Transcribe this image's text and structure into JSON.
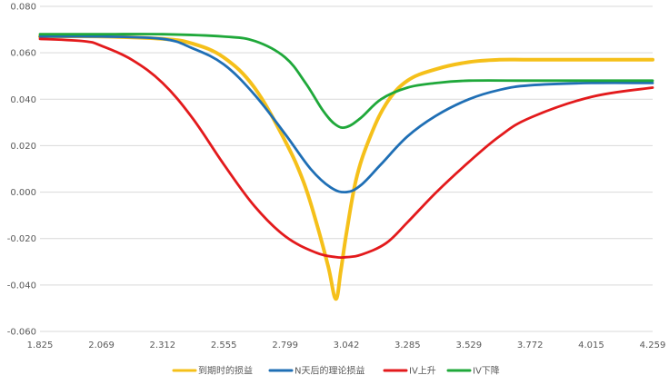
{
  "chart_data": {
    "type": "line",
    "title": "",
    "xlabel": "",
    "ylabel": "",
    "xlim": [
      1.825,
      4.259
    ],
    "ylim": [
      -0.06,
      0.08
    ],
    "grid": true,
    "legend_position": "bottom",
    "x_tick_labels": [
      "1.825",
      "2.069",
      "2.312",
      "2.555",
      "2.799",
      "3.042",
      "3.285",
      "3.529",
      "3.772",
      "4.015",
      "4.259"
    ],
    "y_tick_labels": [
      "0.080",
      "0.060",
      "0.040",
      "0.020",
      "0.000",
      "-0.020",
      "-0.040",
      "-0.060"
    ],
    "series": [
      {
        "name": "到期时的损益",
        "color": "#f5c01a",
        "x": [
          1.825,
          2.069,
          2.312,
          2.43,
          2.555,
          2.677,
          2.799,
          2.87,
          2.92,
          2.97,
          3.0,
          3.02,
          3.042,
          3.08,
          3.13,
          3.2,
          3.285,
          3.4,
          3.529,
          3.65,
          3.772,
          4.015,
          4.259
        ],
        "values": [
          0.067,
          0.067,
          0.066,
          0.064,
          0.058,
          0.045,
          0.022,
          0.005,
          -0.012,
          -0.032,
          -0.046,
          -0.034,
          -0.018,
          0.005,
          0.022,
          0.038,
          0.048,
          0.053,
          0.056,
          0.057,
          0.057,
          0.057,
          0.057
        ]
      },
      {
        "name": "N天后的理论损益",
        "color": "#1f6fb5",
        "x": [
          1.825,
          2.069,
          2.312,
          2.43,
          2.555,
          2.677,
          2.799,
          2.9,
          2.98,
          3.042,
          3.1,
          3.18,
          3.285,
          3.4,
          3.529,
          3.65,
          3.772,
          4.015,
          4.259
        ],
        "values": [
          0.067,
          0.067,
          0.066,
          0.062,
          0.055,
          0.042,
          0.025,
          0.01,
          0.002,
          0.0,
          0.003,
          0.012,
          0.024,
          0.033,
          0.04,
          0.044,
          0.046,
          0.047,
          0.047
        ]
      },
      {
        "name": "IV上升",
        "color": "#e31a1c",
        "x": [
          1.825,
          2.0,
          2.069,
          2.19,
          2.312,
          2.43,
          2.555,
          2.677,
          2.799,
          2.92,
          3.0,
          3.042,
          3.1,
          3.2,
          3.285,
          3.4,
          3.529,
          3.65,
          3.772,
          4.015,
          4.259
        ],
        "values": [
          0.066,
          0.065,
          0.063,
          0.057,
          0.047,
          0.032,
          0.012,
          -0.006,
          -0.019,
          -0.026,
          -0.028,
          -0.028,
          -0.027,
          -0.022,
          -0.013,
          0.0,
          0.013,
          0.024,
          0.032,
          0.041,
          0.045
        ]
      },
      {
        "name": "IV下降",
        "color": "#1fa83a",
        "x": [
          1.825,
          2.069,
          2.312,
          2.555,
          2.68,
          2.799,
          2.88,
          2.95,
          3.0,
          3.042,
          3.1,
          3.18,
          3.285,
          3.4,
          3.529,
          3.772,
          4.015,
          4.259
        ],
        "values": [
          0.068,
          0.068,
          0.068,
          0.067,
          0.065,
          0.058,
          0.047,
          0.035,
          0.029,
          0.028,
          0.032,
          0.04,
          0.045,
          0.047,
          0.048,
          0.048,
          0.048,
          0.048
        ]
      }
    ]
  }
}
